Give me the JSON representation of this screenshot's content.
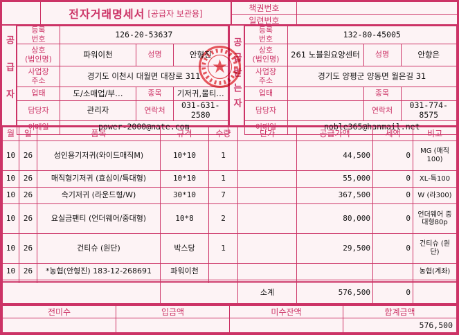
{
  "colors": {
    "accent": "#cc3366",
    "stamp": "#e23c44"
  },
  "title": {
    "main": "전자거래명세서",
    "sub": "[공급자 보관용]"
  },
  "doc_numbers": {
    "book_label": "책권번호",
    "book_value": "",
    "serial_label": "일련번호",
    "serial_value": ""
  },
  "field_labels": {
    "reg": "등록\n번호",
    "company": "상호\n(법인명)",
    "name": "성명",
    "address": "사업장\n주소",
    "biz_type": "업태",
    "biz_item": "종목",
    "manager": "담당자",
    "phone": "연락처",
    "email": "이메일"
  },
  "supplier": {
    "role": "공급자",
    "reg_no": "126-20-53637",
    "company": "파워이천",
    "name": "안형진",
    "address": "경기도 이천시 대월면 대장로 311",
    "biz_type": "도/소매업/부…",
    "biz_item": "기저귀,물티…",
    "manager": "관리자",
    "phone": "031-631-2580",
    "email": "power-2000@nate.com"
  },
  "buyer": {
    "role": "공급받는자",
    "reg_no": "132-80-45005",
    "company": "261 노블원요양센터",
    "name": "안향은",
    "address": "경기도 양평군 양동면 월은길 31",
    "biz_type": "",
    "biz_item": "",
    "manager": "",
    "phone": "031-774-8575",
    "email": "noble365@hanmail.net"
  },
  "table": {
    "headers": [
      "월",
      "일",
      "품목",
      "규격",
      "수량",
      "단가",
      "공급가액",
      "세액",
      "비고"
    ],
    "rows": [
      [
        "10",
        "26",
        "성인용기저귀(와이드매직M)",
        "10*10",
        "1",
        "",
        "44,500",
        "0",
        "MG (매직 100)"
      ],
      [
        "10",
        "26",
        "매직형기저귀 (효심이/특대형)",
        "10*10",
        "1",
        "",
        "55,000",
        "0",
        "XL-특100"
      ],
      [
        "10",
        "26",
        "속기저귀 (라운드형/W)",
        "30*10",
        "7",
        "",
        "367,500",
        "0",
        "W (라300)"
      ],
      [
        "10",
        "26",
        "요실금팬티 (언더웨어/중대형)",
        "10*8",
        "2",
        "",
        "80,000",
        "0",
        "언더웨어 중대형80p"
      ],
      [
        "10",
        "26",
        "건티슈 (원단)",
        "박스당",
        "1",
        "",
        "29,500",
        "0",
        "건티슈 (원단)"
      ],
      [
        "10",
        "26",
        "*농협(안형진) 183-12-268691",
        "파워이천",
        "",
        "",
        "",
        "",
        "농협(계좌)"
      ],
      [
        "",
        "",
        "",
        "",
        "",
        "",
        "",
        "",
        ""
      ],
      [
        "",
        "",
        "",
        "",
        "",
        "",
        "",
        "",
        ""
      ]
    ],
    "subtotal": {
      "label": "소계",
      "supply_amount": "576,500",
      "tax_amount": "0"
    }
  },
  "footer": {
    "headers": [
      "전미수",
      "입금액",
      "미수잔액",
      "합계금액"
    ],
    "values": [
      "",
      "",
      "",
      "576,500"
    ]
  }
}
